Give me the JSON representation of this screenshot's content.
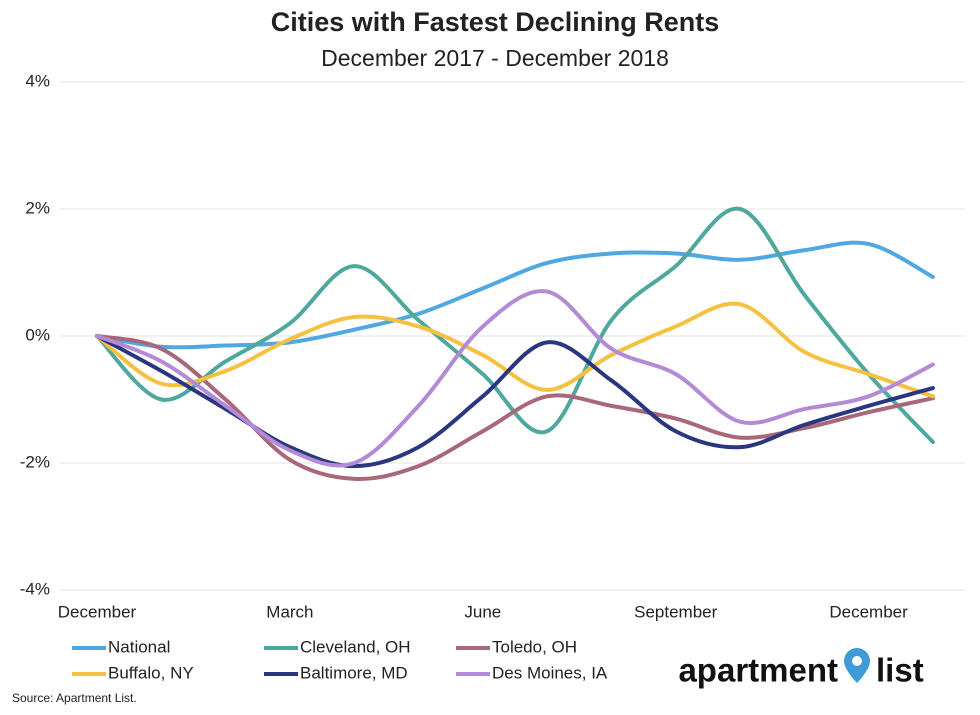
{
  "chart_data": {
    "type": "line",
    "title": "Cities with Fastest Declining Rents",
    "subtitle": "December 2017 - December 2018",
    "categories": [
      "December",
      null,
      null,
      "March",
      null,
      null,
      "June",
      null,
      null,
      "September",
      null,
      null,
      "December",
      null
    ],
    "series": [
      {
        "name": "National",
        "color": "#4fa8e2",
        "values": [
          0,
          -0.17,
          -0.15,
          -0.1,
          0.1,
          0.35,
          0.75,
          1.15,
          1.3,
          1.3,
          1.2,
          1.35,
          1.45,
          0.93
        ]
      },
      {
        "name": "Cleveland, OH",
        "color": "#4ea89b",
        "values": [
          0,
          -1.0,
          -0.4,
          0.2,
          1.1,
          0.25,
          -0.6,
          -1.5,
          0.25,
          1.1,
          2.0,
          0.65,
          -0.6,
          -1.67
        ]
      },
      {
        "name": "Toledo, OH",
        "color": "#a8687a",
        "values": [
          0,
          -0.2,
          -1.0,
          -1.95,
          -2.25,
          -2.05,
          -1.5,
          -0.95,
          -1.1,
          -1.3,
          -1.6,
          -1.45,
          -1.2,
          -0.98
        ]
      },
      {
        "name": "Buffalo, NY",
        "color": "#f6c143",
        "values": [
          0,
          -0.75,
          -0.55,
          -0.05,
          0.3,
          0.15,
          -0.3,
          -0.85,
          -0.3,
          0.15,
          0.5,
          -0.25,
          -0.6,
          -0.95
        ]
      },
      {
        "name": "Baltimore, MD",
        "color": "#2a3680",
        "values": [
          0,
          -0.55,
          -1.15,
          -1.75,
          -2.05,
          -1.75,
          -0.95,
          -0.1,
          -0.7,
          -1.5,
          -1.75,
          -1.4,
          -1.1,
          -0.82
        ]
      },
      {
        "name": "Des Moines, IA",
        "color": "#b28ad6",
        "values": [
          0,
          -0.4,
          -1.1,
          -1.8,
          -2.0,
          -1.1,
          0.15,
          0.7,
          -0.2,
          -0.6,
          -1.35,
          -1.15,
          -0.95,
          -0.45
        ]
      }
    ],
    "ylim": [
      -4,
      4
    ],
    "yticks": [
      {
        "value": 4,
        "label": "4%"
      },
      {
        "value": 2,
        "label": "2%"
      },
      {
        "value": 0,
        "label": "0%"
      },
      {
        "value": -2,
        "label": "-2%"
      },
      {
        "value": -4,
        "label": "-4%"
      }
    ],
    "grid": true,
    "legend": "bottom-left",
    "source": "Source: Apartment List.",
    "logo": [
      "apartment",
      "list"
    ]
  }
}
